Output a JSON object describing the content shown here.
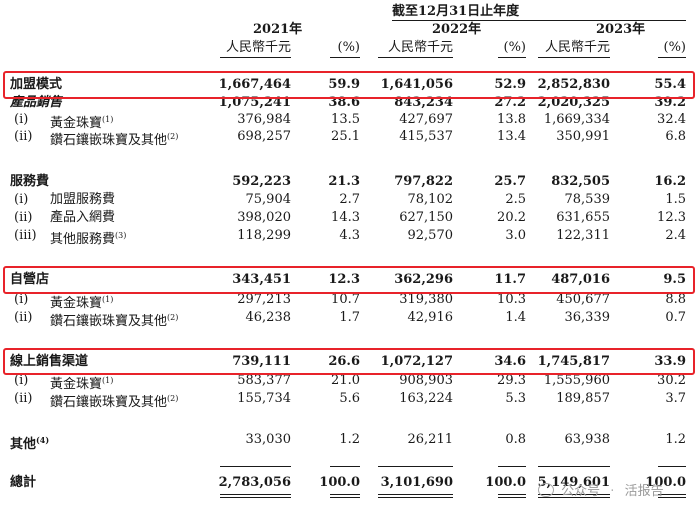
{
  "header": {
    "period": "截至12月31日止年度",
    "years": [
      "2021年",
      "2022年",
      "2023年"
    ],
    "unit_label": "人民幣千元",
    "pct_label": "(%)"
  },
  "rows": [
    {
      "label": "加盟模式",
      "values": [
        "1,667,464",
        "59.9",
        "1,641,056",
        "52.9",
        "2,852,830",
        "55.4"
      ]
    },
    {
      "label": "產品銷售",
      "values": [
        "1,075,241",
        "38.6",
        "843,234",
        "27.2",
        "2,020,325",
        "39.2"
      ]
    },
    {
      "idx": "(i)",
      "label": "黃金珠寶",
      "note": "(1)",
      "values": [
        "376,984",
        "13.5",
        "427,697",
        "13.8",
        "1,669,334",
        "32.4"
      ]
    },
    {
      "idx": "(ii)",
      "label": "鑽石鑲嵌珠寶及其他",
      "note": "(2)",
      "values": [
        "698,257",
        "25.1",
        "415,537",
        "13.4",
        "350,991",
        "6.8"
      ]
    },
    {
      "label": "服務費",
      "values": [
        "592,223",
        "21.3",
        "797,822",
        "25.7",
        "832,505",
        "16.2"
      ]
    },
    {
      "idx": "(i)",
      "label": "加盟服務費",
      "values": [
        "75,904",
        "2.7",
        "78,102",
        "2.5",
        "78,539",
        "1.5"
      ]
    },
    {
      "idx": "(ii)",
      "label": "產品入網費",
      "values": [
        "398,020",
        "14.3",
        "627,150",
        "20.2",
        "631,655",
        "12.3"
      ]
    },
    {
      "idx": "(iii)",
      "label": "其他服務費",
      "note": "(3)",
      "values": [
        "118,299",
        "4.3",
        "92,570",
        "3.0",
        "122,311",
        "2.4"
      ]
    },
    {
      "label": "自營店",
      "values": [
        "343,451",
        "12.3",
        "362,296",
        "11.7",
        "487,016",
        "9.5"
      ]
    },
    {
      "idx": "(i)",
      "label": "黃金珠寶",
      "note": "(1)",
      "values": [
        "297,213",
        "10.7",
        "319,380",
        "10.3",
        "450,677",
        "8.8"
      ]
    },
    {
      "idx": "(ii)",
      "label": "鑽石鑲嵌珠寶及其他",
      "note": "(2)",
      "values": [
        "46,238",
        "1.7",
        "42,916",
        "1.4",
        "36,339",
        "0.7"
      ]
    },
    {
      "label": "線上銷售渠道",
      "values": [
        "739,111",
        "26.6",
        "1,072,127",
        "34.6",
        "1,745,817",
        "33.9"
      ]
    },
    {
      "idx": "(i)",
      "label": "黃金珠寶",
      "note": "(1)",
      "values": [
        "583,377",
        "21.0",
        "908,903",
        "29.3",
        "1,555,960",
        "30.2"
      ]
    },
    {
      "idx": "(ii)",
      "label": "鑽石鑲嵌珠寶及其他",
      "note": "(2)",
      "values": [
        "155,734",
        "5.6",
        "163,224",
        "5.3",
        "189,857",
        "3.7"
      ]
    },
    {
      "label": "其他",
      "note": "(4)",
      "values": [
        "33,030",
        "1.2",
        "26,211",
        "0.8",
        "63,938",
        "1.2"
      ]
    },
    {
      "label": "總計",
      "values": [
        "2,783,056",
        "100.0",
        "3,101,690",
        "100.0",
        "5,149,601",
        "100.0"
      ]
    }
  ],
  "watermark": {
    "brand": "公众号",
    "name": "活报告"
  },
  "highlight_color": "#e8232a"
}
